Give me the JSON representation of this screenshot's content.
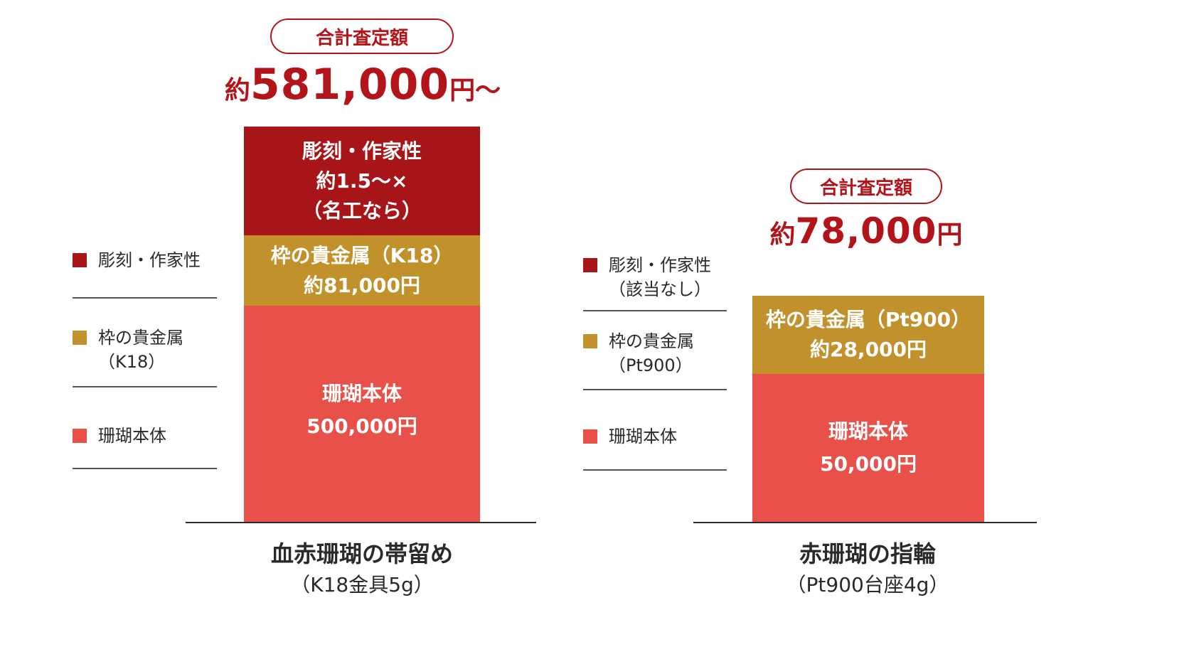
{
  "colors": {
    "engraving": "#a81518",
    "precious_metal": "#c1922b",
    "coral_body": "#e8514a",
    "accent": "#b3141a"
  },
  "chart_data": [
    {
      "type": "bar",
      "stacked": true,
      "categories": [
        "血赤珊瑚の帯留め"
      ],
      "subtitle": "（K18金具5g）",
      "total_label": "合計査定額",
      "total_prefix": "約",
      "total_value": "581,000",
      "total_suffix": "円～",
      "series": [
        {
          "name": "珊瑚本体",
          "value": 500000,
          "lines": [
            "珊瑚本体",
            "500,000円"
          ],
          "color_key": "coral_body"
        },
        {
          "name": "枠の貴金属（K18）",
          "value": 81000,
          "lines": [
            "枠の貴金属（K18）",
            "約81,000円"
          ],
          "color_key": "precious_metal"
        },
        {
          "name": "彫刻・作家性",
          "lines": [
            "彫刻・作家性",
            "約1.5～×",
            "（名工なら）"
          ],
          "color_key": "engraving"
        }
      ],
      "legend": [
        {
          "label": "彫刻・作家性",
          "color_key": "engraving"
        },
        {
          "label": "枠の貴金属\n（K18）",
          "color_key": "precious_metal"
        },
        {
          "label": "珊瑚本体",
          "color_key": "coral_body"
        }
      ]
    },
    {
      "type": "bar",
      "stacked": true,
      "categories": [
        "赤珊瑚の指輪"
      ],
      "subtitle": "（Pt900台座4g）",
      "total_label": "合計査定額",
      "total_prefix": "約",
      "total_value": "78,000",
      "total_suffix": "円",
      "series": [
        {
          "name": "珊瑚本体",
          "value": 50000,
          "lines": [
            "珊瑚本体",
            "50,000円"
          ],
          "color_key": "coral_body"
        },
        {
          "name": "枠の貴金属（Pt900）",
          "value": 28000,
          "lines": [
            "枠の貴金属（Pt900）",
            "約28,000円"
          ],
          "color_key": "precious_metal"
        }
      ],
      "legend": [
        {
          "label": "彫刻・作家性\n（該当なし）",
          "color_key": "engraving"
        },
        {
          "label": "枠の貴金属\n（Pt900）",
          "color_key": "precious_metal"
        },
        {
          "label": "珊瑚本体",
          "color_key": "coral_body"
        }
      ]
    }
  ]
}
